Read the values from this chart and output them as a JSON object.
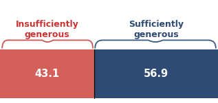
{
  "values": [
    43.1,
    56.9
  ],
  "labels": [
    "43.1",
    "56.9"
  ],
  "colors": [
    "#d4605a",
    "#2e4a72"
  ],
  "titles": [
    "Insufficiently\ngenerous",
    "Sufficiently\ngenerous"
  ],
  "title_colors": [
    "#cc3333",
    "#2e4a72"
  ],
  "brace_colors": [
    "#cc5555",
    "#3a5a80"
  ],
  "text_color": "#ffffff",
  "background_color": "#ffffff",
  "label_fontsize": 10.5,
  "title_fontsize": 9.0
}
